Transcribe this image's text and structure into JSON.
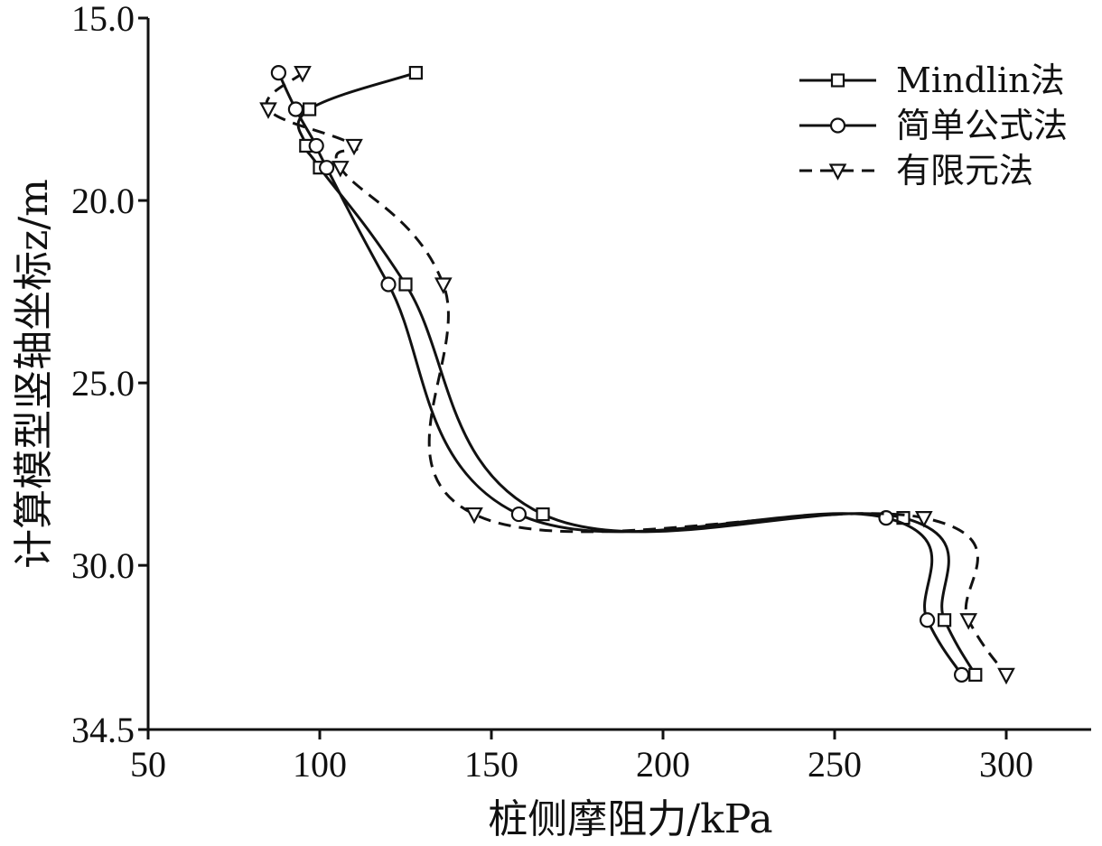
{
  "chart_data": {
    "type": "line",
    "xlabel": "桩侧摩阻力/kPa",
    "ylabel": "计算模型竖轴坐标z/m",
    "xlim": [
      50,
      325
    ],
    "ylim": [
      15.0,
      34.5
    ],
    "y_inverted": true,
    "x_ticks": [
      "50",
      "100",
      "150",
      "200",
      "250",
      "300"
    ],
    "y_ticks": [
      "15.0",
      "20.0",
      "25.0",
      "30.0",
      "34.5"
    ],
    "legend_position": "top-right",
    "series": [
      {
        "name": "Mindlin法",
        "line_style": "solid",
        "marker": "square",
        "color": "#111111",
        "points": [
          {
            "x": 128,
            "y": 16.5
          },
          {
            "x": 97,
            "y": 17.5
          },
          {
            "x": 96,
            "y": 18.5
          },
          {
            "x": 100,
            "y": 19.1
          },
          {
            "x": 125,
            "y": 22.3
          },
          {
            "x": 165,
            "y": 28.6
          },
          {
            "x": 270,
            "y": 28.7
          },
          {
            "x": 282,
            "y": 31.5
          },
          {
            "x": 291,
            "y": 33.0
          }
        ]
      },
      {
        "name": "简单公式法",
        "line_style": "solid",
        "marker": "circle",
        "color": "#111111",
        "points": [
          {
            "x": 88,
            "y": 16.5
          },
          {
            "x": 93,
            "y": 17.5
          },
          {
            "x": 99,
            "y": 18.5
          },
          {
            "x": 102,
            "y": 19.1
          },
          {
            "x": 120,
            "y": 22.3
          },
          {
            "x": 158,
            "y": 28.6
          },
          {
            "x": 265,
            "y": 28.7
          },
          {
            "x": 277,
            "y": 31.5
          },
          {
            "x": 287,
            "y": 33.0
          }
        ]
      },
      {
        "name": "有限元法",
        "line_style": "dashed",
        "marker": "triangle-down",
        "color": "#111111",
        "points": [
          {
            "x": 95,
            "y": 16.5
          },
          {
            "x": 85,
            "y": 17.5
          },
          {
            "x": 110,
            "y": 18.5
          },
          {
            "x": 106,
            "y": 19.1
          },
          {
            "x": 136,
            "y": 22.3
          },
          {
            "x": 145,
            "y": 28.6
          },
          {
            "x": 276,
            "y": 28.7
          },
          {
            "x": 289,
            "y": 31.5
          },
          {
            "x": 300,
            "y": 33.0
          }
        ]
      }
    ]
  }
}
